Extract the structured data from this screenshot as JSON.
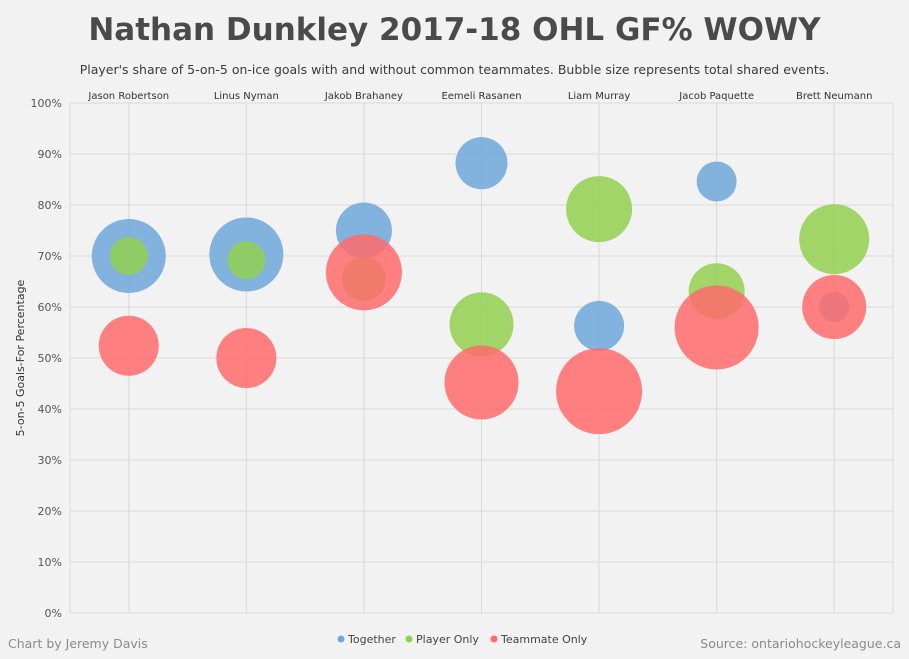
{
  "title": "Nathan Dunkley 2017-18 OHL GF% WOWY",
  "subtitle": "Player's share of 5-on-5 on-ice goals with and without common teammates. Bubble size represents total shared events.",
  "credit": "Chart by Jeremy Davis",
  "source": "Source: ontariohockeyleague.ca",
  "colors": {
    "Together": "#6fa8dc",
    "Player Only": "#93d050",
    "Teammate Only": "#ff6b6b"
  },
  "chart_data": {
    "type": "scatter",
    "title": "Nathan Dunkley 2017-18 OHL GF% WOWY",
    "ylabel": "5-on-5 Goals-For Percentage",
    "ylim": [
      0,
      100
    ],
    "yticks": [
      "0%",
      "10%",
      "20%",
      "30%",
      "40%",
      "50%",
      "60%",
      "70%",
      "80%",
      "90%",
      "100%"
    ],
    "categories": [
      "Jason Robertson",
      "Linus Nyman",
      "Jakob Brahaney",
      "Eemeli Rasanen",
      "Liam Murray",
      "Jacob Paquette",
      "Brett Neumann"
    ],
    "grid": true,
    "legend_position": "bottom",
    "series": [
      {
        "name": "Together",
        "values": [
          70,
          70.3,
          75,
          88.2,
          56.3,
          84.6,
          60
        ],
        "sizes": [
          37,
          37,
          28,
          26,
          25,
          20,
          15
        ]
      },
      {
        "name": "Player Only",
        "values": [
          70,
          69.2,
          65.5,
          56.6,
          79.2,
          63.1,
          73.3
        ],
        "sizes": [
          19,
          19,
          22,
          32,
          33,
          28,
          35
        ]
      },
      {
        "name": "Teammate Only",
        "values": [
          52.4,
          50,
          66.8,
          45.2,
          43.5,
          56,
          60
        ],
        "sizes": [
          30,
          30,
          38,
          37,
          43,
          42,
          32
        ]
      }
    ]
  }
}
